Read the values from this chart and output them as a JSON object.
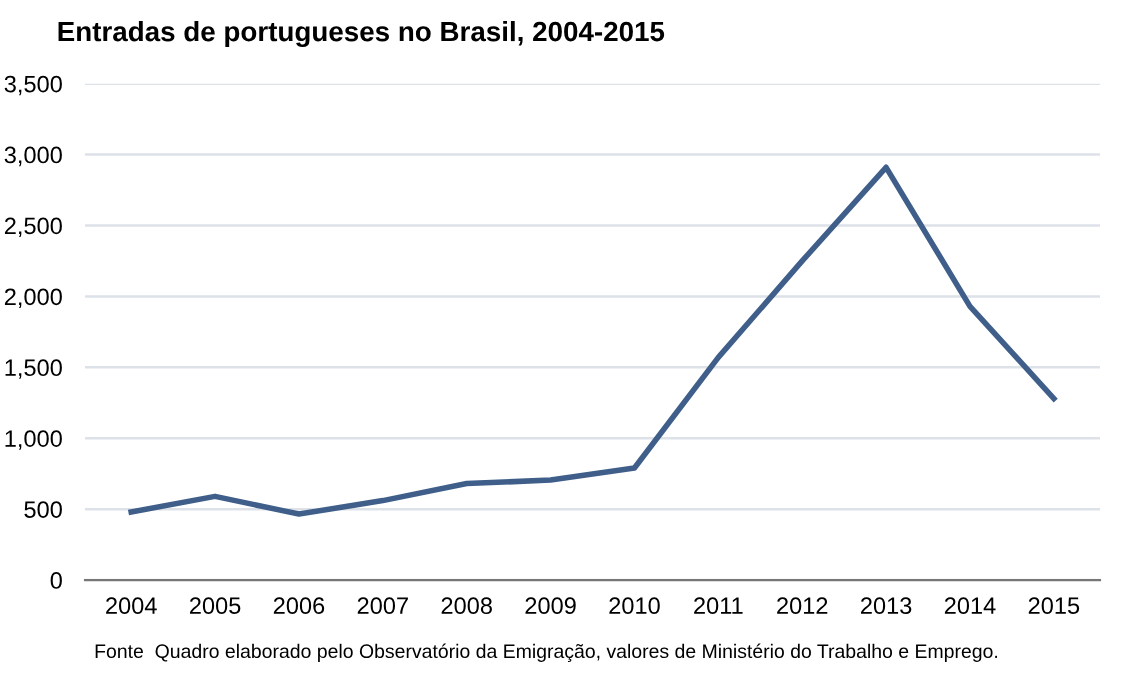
{
  "chart_data": {
    "type": "line",
    "title": "Entradas de portugueses no Brasil, 2004-2015",
    "categories": [
      "2004",
      "2005",
      "2006",
      "2007",
      "2008",
      "2009",
      "2010",
      "2011",
      "2012",
      "2013",
      "2014",
      "2015"
    ],
    "series": [
      {
        "color": "#3f5f8a",
        "values": [
          480,
          590,
          465,
          560,
          680,
          705,
          790,
          1570,
          2250,
          2910,
          1930,
          1280
        ]
      }
    ],
    "ylim": [
      0,
      3500
    ],
    "yticks": [
      0,
      {
        "value": 500,
        "label": "500"
      },
      {
        "value": 1000,
        "label": "1,000"
      },
      {
        "value": 1500,
        "label": "1,500"
      },
      {
        "value": 2000,
        "label": "2,000"
      },
      {
        "value": 2500,
        "label": "2,500"
      },
      {
        "value": 3000,
        "label": "3,000"
      },
      {
        "value": 3500,
        "label": "3,500"
      }
    ],
    "grid": "y",
    "legend": false,
    "annotations": [
      "Fonte  Quadro elaborado pelo Observatório da Emigração, valores de Ministério do Trabalho e Emprego."
    ]
  }
}
